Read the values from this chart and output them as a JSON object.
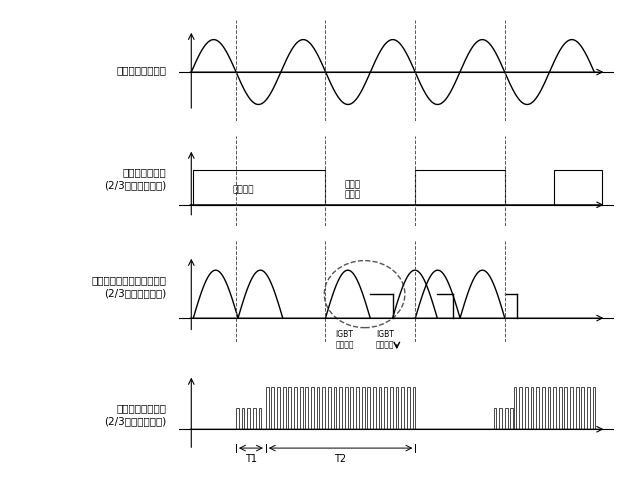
{
  "bg_color": "#ffffff",
  "line_color": "#000000",
  "dashed_color": "#555555",
  "fig_width": 6.4,
  "fig_height": 5.03,
  "panel1_label": "交流商用電源波形",
  "panel2_label": "低電力加覟波形\n(2/3デューティ比)",
  "panel3_label": "ＩＧＢＴのＣ極の電圧波形\n(2/3デューティ比)",
  "panel4_label": "ＩＧＢＴ駆動波形\n(2/3デューティ比)",
  "heating_label": "加熱区間",
  "stop_label": "加熱停\n止区間",
  "igbt1_label": "IGBT\n作動区径",
  "igbt2_label": "IGBT\n作動区径",
  "T1_label": "T1",
  "T2_label": "T2"
}
